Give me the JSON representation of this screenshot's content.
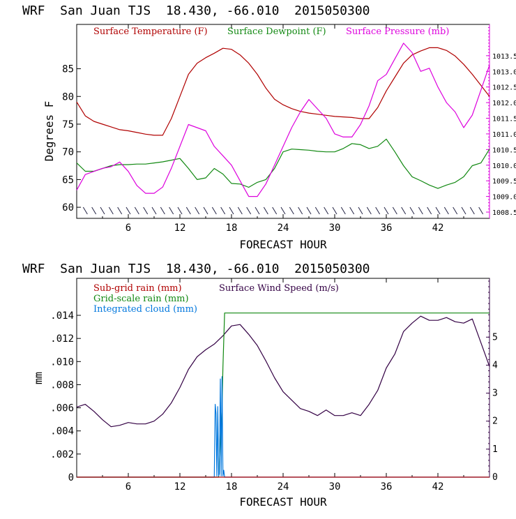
{
  "panel1": {
    "title": "WRF  San Juan TJS  18.430, -66.010  2015050300",
    "xlabel": "FORECAST HOUR",
    "ylabel": "Degrees F",
    "legend": {
      "temp": "Surface Temperature (F)",
      "dew": "Surface Dewpoint (F)",
      "pres": "Surface Pressure (mb)"
    }
  },
  "panel2": {
    "title": "WRF  San Juan TJS  18.430, -66.010  2015050300",
    "xlabel": "FORECAST HOUR",
    "ylabel": "mm",
    "legend": {
      "subgrid": "Sub-grid rain (mm)",
      "gridscale": "Grid-scale rain (mm)",
      "cloud": "Integrated cloud (mm)",
      "wind": "Surface Wind Speed (m/s)"
    }
  },
  "colors": {
    "temp": "#b00000",
    "dew": "#118811",
    "pres": "#dd00dd",
    "subgrid": "#b00000",
    "gridscale": "#118811",
    "cloud": "#0077dd",
    "wind": "#330044",
    "axis": "#000000"
  },
  "chart_data": [
    {
      "type": "line",
      "x_ticks": [
        "6",
        "12",
        "18",
        "24",
        "30",
        "36",
        "42"
      ],
      "y_ticks_left": [
        "60",
        "65",
        "70",
        "75",
        "80",
        "85"
      ],
      "y_ticks_right": [
        "1008.5",
        "1009.0",
        "1009.5",
        "1010.0",
        "1010.5",
        "1011.0",
        "1011.5",
        "1012.0",
        "1012.5",
        "1013.0",
        "1013.5"
      ],
      "xlim": [
        0,
        48
      ],
      "ylim_left": [
        58,
        93
      ],
      "ylim_right": [
        1008.3,
        1014.5
      ],
      "x": [
        0,
        1,
        2,
        3,
        4,
        5,
        6,
        7,
        8,
        9,
        10,
        11,
        12,
        13,
        14,
        15,
        16,
        17,
        18,
        19,
        20,
        21,
        22,
        23,
        24,
        25,
        26,
        27,
        28,
        29,
        30,
        31,
        32,
        33,
        34,
        35,
        36,
        37,
        38,
        39,
        40,
        41,
        42,
        43,
        44,
        45,
        46,
        47,
        48
      ],
      "series": [
        {
          "name": "Surface Temperature (F)",
          "axis": "left",
          "values": [
            79,
            76.5,
            75.5,
            75,
            74.5,
            74,
            73.8,
            73.5,
            73.2,
            73,
            73,
            76,
            80,
            84,
            86,
            87,
            87.8,
            88.7,
            88.5,
            87.5,
            86,
            84,
            81.5,
            79.5,
            78.5,
            77.8,
            77.3,
            77,
            76.8,
            76.6,
            76.4,
            76.3,
            76.2,
            76,
            76,
            78,
            81,
            83.5,
            86,
            87.5,
            88.2,
            88.8,
            88.8,
            88.3,
            87.3,
            85.8,
            84,
            82,
            80
          ]
        },
        {
          "name": "Surface Dewpoint (F)",
          "axis": "left",
          "values": [
            68,
            66.5,
            66.5,
            67,
            67.5,
            67.7,
            67.7,
            67.8,
            67.8,
            68,
            68.2,
            68.5,
            68.8,
            67,
            65,
            65.3,
            67,
            66,
            64.3,
            64.2,
            63.6,
            64.5,
            65,
            67,
            70,
            70.5,
            70.4,
            70.3,
            70.1,
            70,
            70,
            70.6,
            71.5,
            71.3,
            70.6,
            71,
            72.3,
            70,
            67.5,
            65.5,
            64.8,
            64,
            63.4,
            64,
            64.5,
            65.5,
            67.5,
            68,
            70.5
          ]
        },
        {
          "name": "Surface Pressure (mb)",
          "axis": "right",
          "values": [
            1009.2,
            1009.7,
            1009.8,
            1009.9,
            1009.95,
            1010.1,
            1009.8,
            1009.35,
            1009.1,
            1009.1,
            1009.3,
            1009.9,
            1010.6,
            1011.3,
            1011.2,
            1011.1,
            1010.6,
            1010.3,
            1010.0,
            1009.5,
            1009.0,
            1009.0,
            1009.4,
            1010.0,
            1010.6,
            1011.2,
            1011.7,
            1012.1,
            1011.8,
            1011.5,
            1011.0,
            1010.9,
            1010.9,
            1011.3,
            1011.9,
            1012.7,
            1012.9,
            1013.4,
            1013.9,
            1013.6,
            1013.0,
            1013.1,
            1012.5,
            1012.0,
            1011.7,
            1011.2,
            1011.6,
            1012.4,
            1013.2
          ]
        }
      ]
    },
    {
      "type": "line",
      "x_ticks": [
        "6",
        "12",
        "18",
        "24",
        "30",
        "36",
        "42"
      ],
      "y_ticks_left": [
        "0",
        ".002",
        ".004",
        ".006",
        ".008",
        ".010",
        ".012",
        ".014"
      ],
      "y_ticks_right": [
        "0",
        "1",
        "2",
        "3",
        "4",
        "5"
      ],
      "xlim": [
        0,
        48
      ],
      "ylim_left": [
        0,
        0.0172
      ],
      "ylim_right": [
        0,
        7.1
      ],
      "x": [
        0,
        1,
        2,
        3,
        4,
        5,
        6,
        7,
        8,
        9,
        10,
        11,
        12,
        13,
        14,
        15,
        16,
        17,
        18,
        19,
        20,
        21,
        22,
        23,
        24,
        25,
        26,
        27,
        28,
        29,
        30,
        31,
        32,
        33,
        34,
        35,
        36,
        37,
        38,
        39,
        40,
        41,
        42,
        43,
        44,
        45,
        46,
        47,
        48
      ],
      "series": [
        {
          "name": "Surface Wind Speed (m/s)",
          "axis": "right",
          "values": [
            2.5,
            2.6,
            2.35,
            2.05,
            1.8,
            1.85,
            1.95,
            1.9,
            1.9,
            2.0,
            2.25,
            2.65,
            3.2,
            3.85,
            4.3,
            4.55,
            4.75,
            5.05,
            5.4,
            5.45,
            5.1,
            4.7,
            4.15,
            3.55,
            3.05,
            2.75,
            2.45,
            2.35,
            2.2,
            2.4,
            2.2,
            2.2,
            2.3,
            2.2,
            2.6,
            3.1,
            3.9,
            4.4,
            5.2,
            5.5,
            5.75,
            5.6,
            5.6,
            5.7,
            5.55,
            5.5,
            5.65,
            4.8,
            3.95
          ]
        },
        {
          "name": "Grid-scale rain (mm)",
          "axis": "left",
          "x": [
            0,
            16.5,
            16.9,
            17,
            17.2,
            48
          ],
          "values": [
            0,
            0,
            0.006,
            0.0095,
            0.0142,
            0.0142
          ]
        },
        {
          "name": "Integrated cloud (mm)",
          "axis": "left",
          "x": [
            0,
            16,
            16.1,
            16.2,
            16.3,
            16.4,
            16.5,
            16.6,
            16.7,
            16.8,
            16.9,
            17,
            17.1,
            17.2,
            48
          ],
          "values": [
            0,
            0,
            0.0063,
            0.0055,
            0.0001,
            0.0061,
            0.0001,
            0.0003,
            0.0085,
            0.0001,
            0.0087,
            0.0001,
            0.0006,
            0,
            0
          ]
        },
        {
          "name": "Sub-grid rain (mm)",
          "axis": "left",
          "x": [
            0,
            48
          ],
          "values": [
            0,
            0
          ]
        }
      ]
    }
  ]
}
